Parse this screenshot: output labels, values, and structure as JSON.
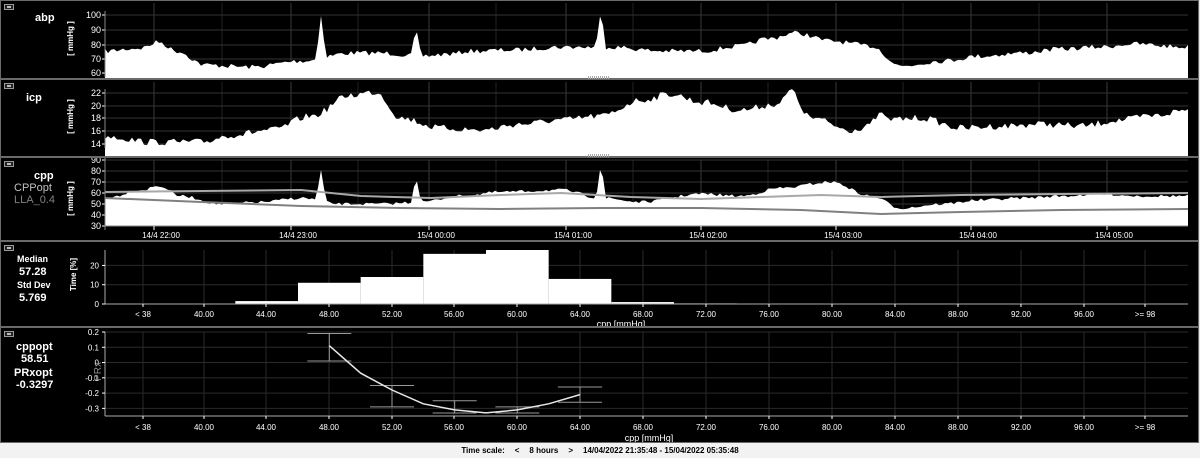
{
  "panels": {
    "abp": {
      "label": "abp",
      "unit": "[ mmHg ]",
      "yticks": [
        "100",
        "90",
        "80",
        "70",
        "60"
      ]
    },
    "icp": {
      "label": "icp",
      "unit": "[ mmHg ]",
      "yticks": [
        "22",
        "20",
        "18",
        "16",
        "14"
      ]
    },
    "cpp": {
      "labels": [
        "cpp",
        "CPPopt",
        "LLA_0.4"
      ],
      "unit": "[ mmHg ]",
      "yticks": [
        "90",
        "80",
        "70",
        "60",
        "50",
        "40",
        "30"
      ],
      "time_ticks": [
        "14/4 22:00",
        "14/4 23:00",
        "15/4 00:00",
        "15/4 01:00",
        "15/4 02:00",
        "15/4 03:00",
        "15/4 04:00",
        "15/4 05:00"
      ]
    }
  },
  "histogram": {
    "median_label": "Median",
    "median_value": "57.28",
    "std_label": "Std Dev",
    "std_value": "5.769",
    "ylabel": "Time [%]",
    "yticks": [
      "20",
      "10",
      "0"
    ],
    "xlabel": "cpp [mmHg]"
  },
  "prx": {
    "cppopt_label": "cppopt",
    "cppopt_value": "58.51",
    "prxopt_label": "PRxopt",
    "prxopt_value": "-0.3297",
    "ylabel": "PRx",
    "yticks": [
      "0.2",
      "0.1",
      "0",
      "-0.1",
      "-0.2",
      "-0.3"
    ],
    "xlabel": "cpp [mmHg]"
  },
  "x_categories": [
    "< 38",
    "40.00",
    "44.00",
    "48.00",
    "52.00",
    "56.00",
    "60.00",
    "64.00",
    "68.00",
    "72.00",
    "76.00",
    "80.00",
    "84.00",
    "88.00",
    "92.00",
    "96.00",
    ">= 98"
  ],
  "footer": {
    "label": "Time scale:",
    "prev": "<",
    "range": "8 hours",
    "next": ">",
    "period": "14/04/2022 21:35:48 - 15/04/2022 05:35:48"
  },
  "colors": {
    "background": "#000000",
    "waveform": "#ffffff",
    "cppopt_line": "#a0a0a0",
    "lla_line": "#808080"
  },
  "chart_data": [
    {
      "type": "bar",
      "title": "",
      "xlabel": "cpp [mmHg]",
      "ylabel": "Time [%]",
      "ylim": [
        0,
        28
      ],
      "bins": [
        {
          "from": 38,
          "to": 42,
          "value": 0.2
        },
        {
          "from": 42,
          "to": 46,
          "value": 1.5
        },
        {
          "from": 46,
          "to": 50,
          "value": 11
        },
        {
          "from": 50,
          "to": 54,
          "value": 14
        },
        {
          "from": 54,
          "to": 58,
          "value": 26
        },
        {
          "from": 58,
          "to": 62,
          "value": 28
        },
        {
          "from": 62,
          "to": 66,
          "value": 13
        },
        {
          "from": 66,
          "to": 70,
          "value": 1
        },
        {
          "from": 70,
          "to": 74,
          "value": 0.3
        }
      ]
    },
    {
      "type": "scatter",
      "title": "",
      "xlabel": "cpp [mmHg]",
      "ylabel": "PRx",
      "ylim": [
        -0.35,
        0.2
      ],
      "points": [
        {
          "x": 48,
          "y": 0.1,
          "err": 0.09
        },
        {
          "x": 52,
          "y": -0.22,
          "err": 0.07
        },
        {
          "x": 56,
          "y": -0.29,
          "err": 0.04
        },
        {
          "x": 60,
          "y": -0.31,
          "err": 0.02
        },
        {
          "x": 64,
          "y": -0.21,
          "err": 0.05
        }
      ],
      "fit": {
        "x": [
          48,
          50,
          52,
          54,
          56,
          58,
          60,
          62,
          64
        ],
        "y": [
          0.11,
          -0.07,
          -0.18,
          -0.27,
          -0.31,
          -0.33,
          -0.31,
          -0.27,
          -0.21
        ]
      }
    }
  ]
}
